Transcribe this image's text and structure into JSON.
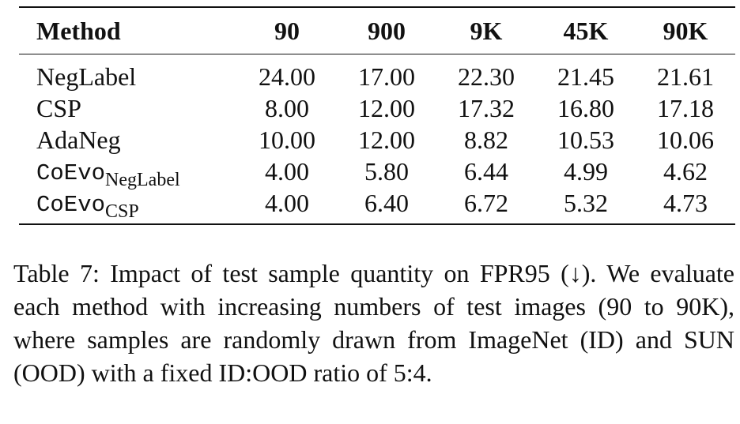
{
  "table": {
    "headers": [
      "Method",
      "90",
      "900",
      "9K",
      "45K",
      "90K"
    ],
    "rows": [
      {
        "method": "NegLabel",
        "method_sub": "",
        "values": [
          "24.00",
          "17.00",
          "22.30",
          "21.45",
          "21.61"
        ]
      },
      {
        "method": "CSP",
        "method_sub": "",
        "values": [
          "8.00",
          "12.00",
          "17.32",
          "16.80",
          "17.18"
        ]
      },
      {
        "method": "AdaNeg",
        "method_sub": "",
        "values": [
          "10.00",
          "12.00",
          "8.82",
          "10.53",
          "10.06"
        ]
      },
      {
        "method": "CoEvo",
        "method_sub": "NegLabel",
        "values": [
          "4.00",
          "5.80",
          "6.44",
          "4.99",
          "4.62"
        ]
      },
      {
        "method": "CoEvo",
        "method_sub": "CSP",
        "values": [
          "4.00",
          "6.40",
          "6.72",
          "5.32",
          "4.73"
        ]
      }
    ]
  },
  "caption": {
    "text": "Table 7: Impact of test sample quantity on FPR95 (↓). We evaluate each method with increasing numbers of test images (90 to 90K), where samples are randomly drawn from ImageNet (ID) and SUN (OOD) with a fixed ID:OOD ratio of 5:4."
  }
}
